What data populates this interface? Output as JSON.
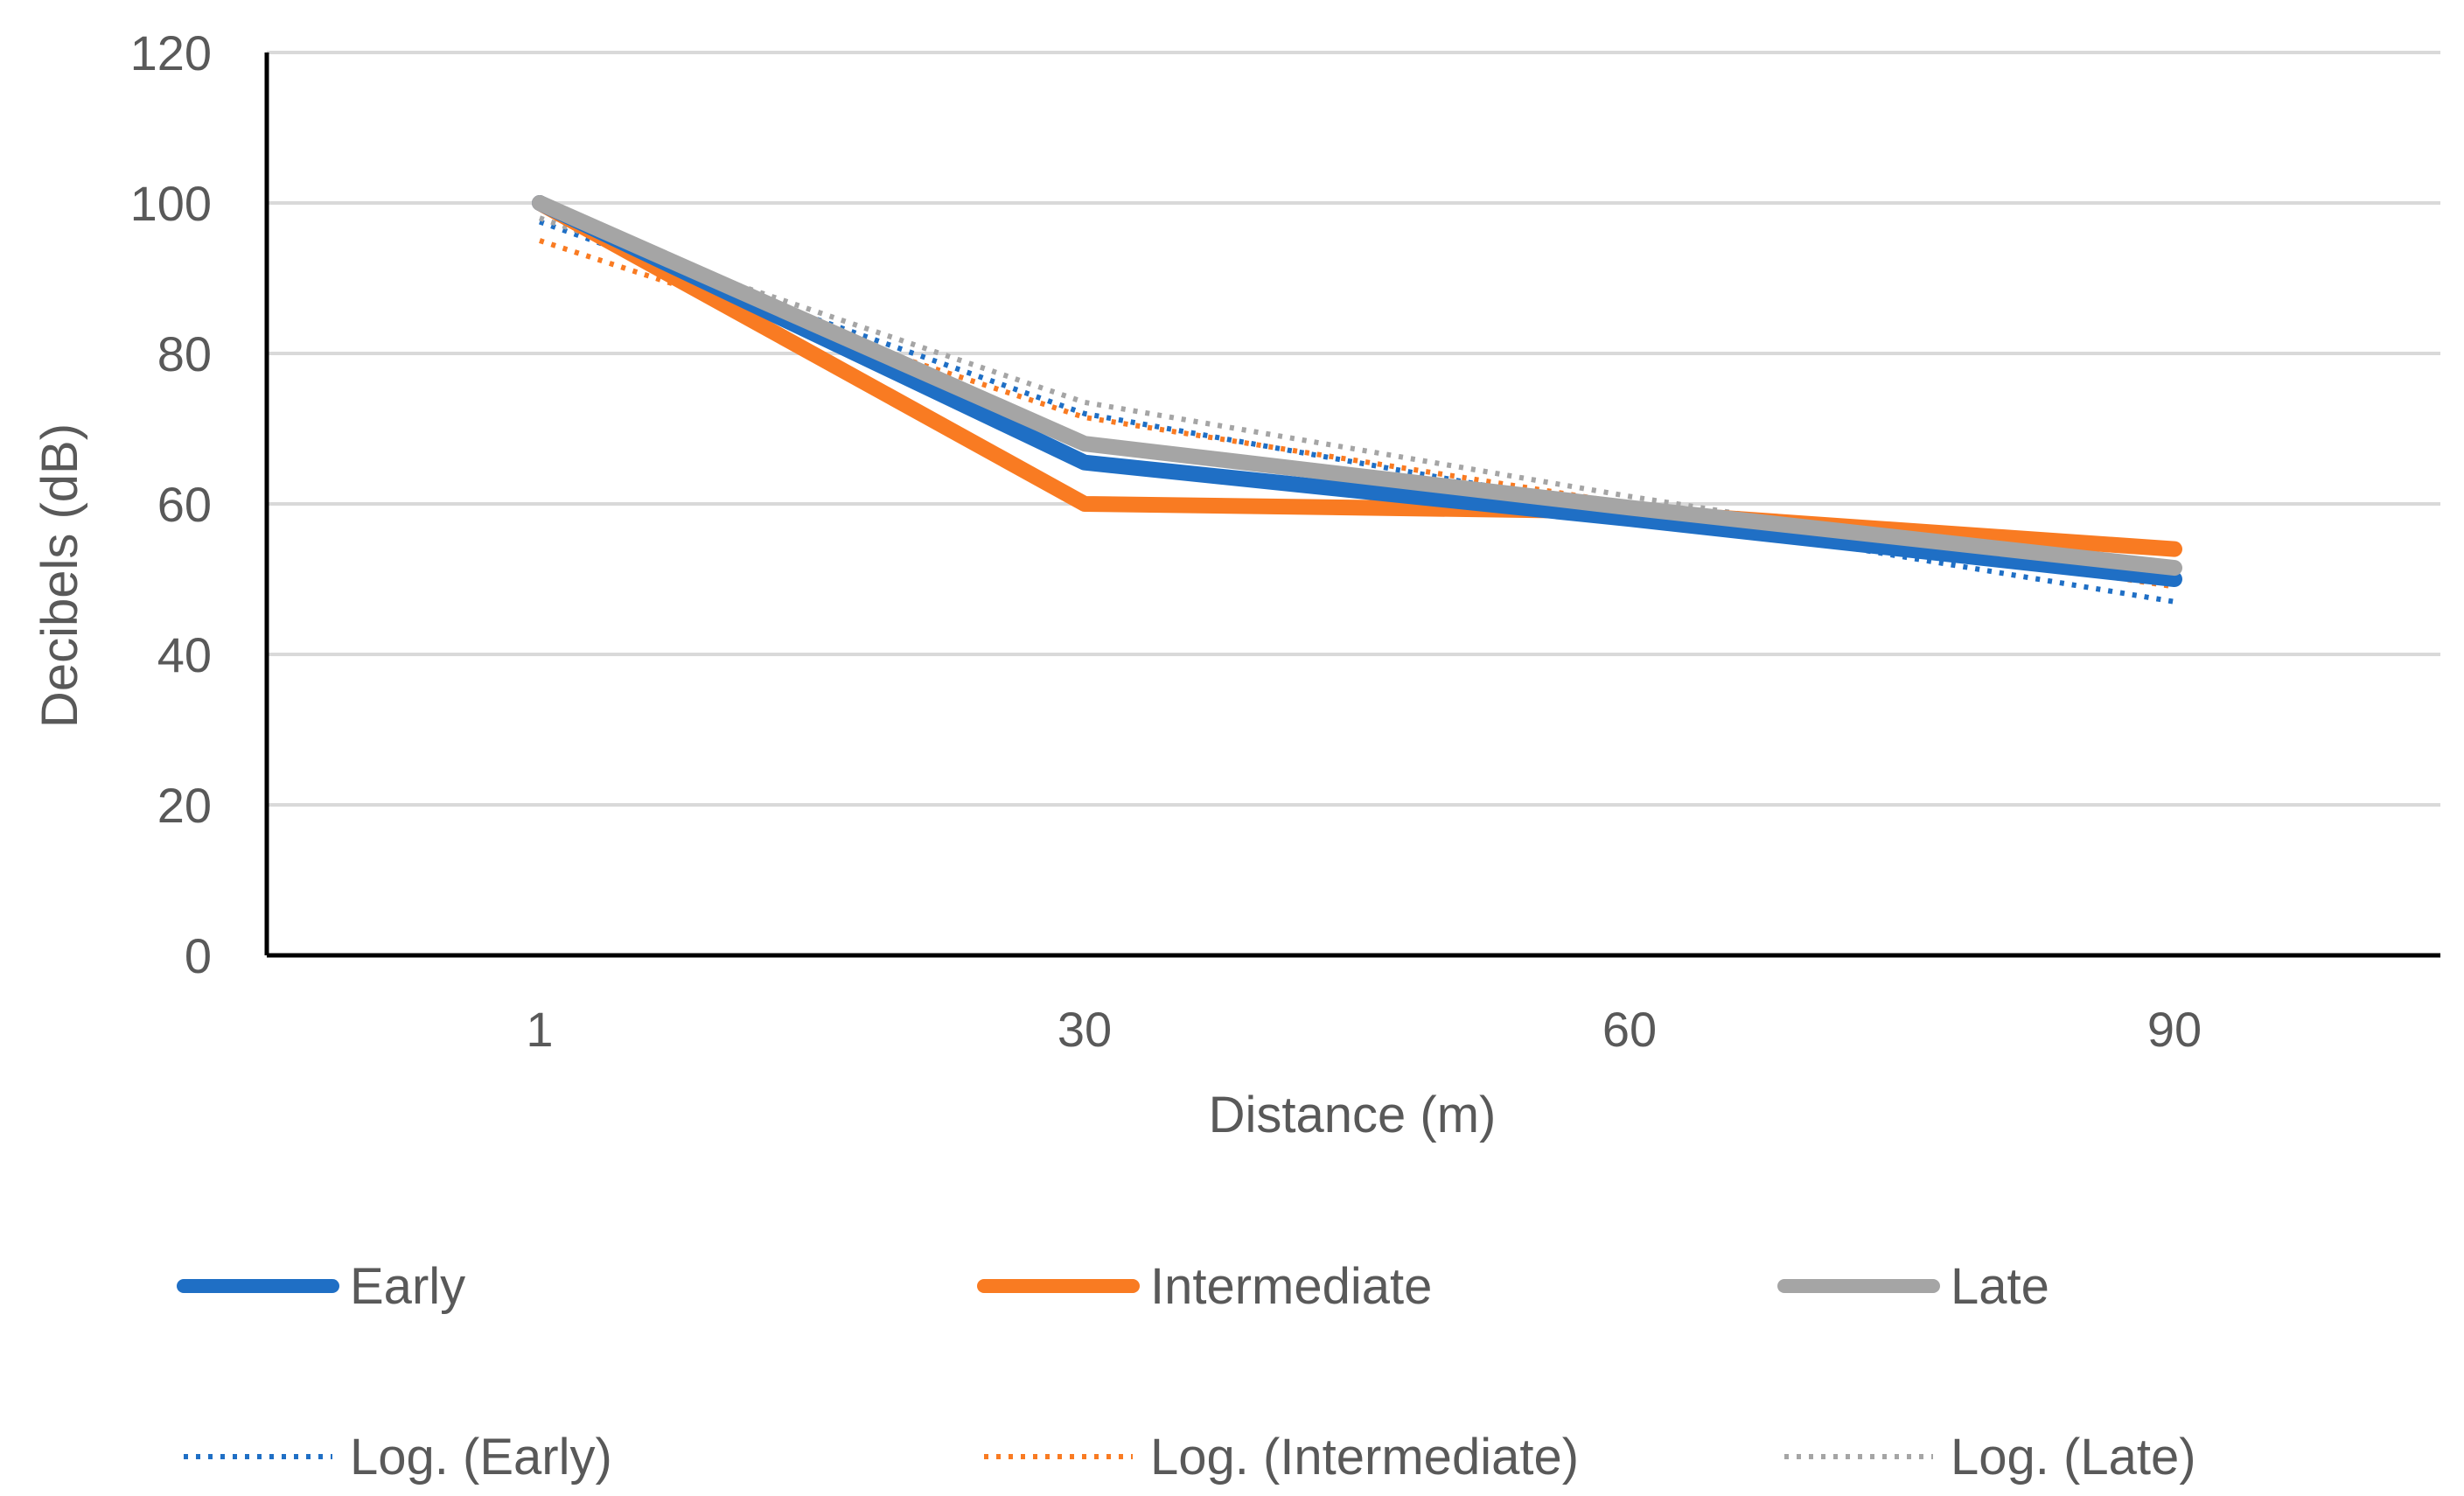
{
  "chart_data": {
    "type": "line",
    "title": "",
    "xlabel": "Distance (m)",
    "ylabel": "Decibels (dB)",
    "categories": [
      "1",
      "30",
      "60",
      "90"
    ],
    "ylim": [
      0,
      120
    ],
    "yticks": [
      "0",
      "20",
      "40",
      "60",
      "80",
      "100",
      "120"
    ],
    "grid": true,
    "legend_position": "bottom",
    "series": [
      {
        "name": "Early",
        "style": "solid",
        "color": "#1F6FC5",
        "values": [
          100,
          65.5,
          58,
          50
        ]
      },
      {
        "name": "Intermediate",
        "style": "solid",
        "color": "#F97B22",
        "values": [
          100,
          60,
          59,
          54
        ]
      },
      {
        "name": "Late",
        "style": "solid",
        "color": "#A5A5A5",
        "values": [
          100,
          68,
          59.5,
          51.5
        ]
      }
    ],
    "trendlines": [
      {
        "name": "Log. (Early)",
        "style": "dotted",
        "color": "#1F6FC5",
        "values": [
          97.5,
          72,
          59,
          47
        ]
      },
      {
        "name": "Log. (Intermediate)",
        "style": "dotted",
        "color": "#F97B22",
        "values": [
          95,
          71.5,
          60,
          49
        ]
      },
      {
        "name": "Log. (Late)",
        "style": "dotted",
        "color": "#A5A5A5",
        "values": [
          98,
          73.5,
          61,
          49.5
        ]
      }
    ]
  }
}
